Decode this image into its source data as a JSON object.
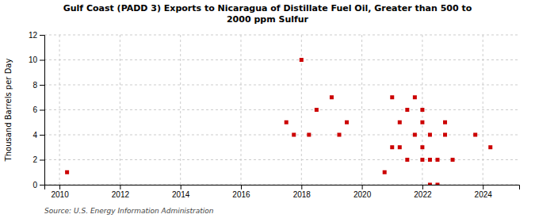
{
  "chart_data": {
    "type": "scatter",
    "title": "Gulf Coast (PADD 3) Exports to Nicaragua of Distillate Fuel Oil, Greater than 500 to\n2000 ppm Sulfur",
    "ylabel": "Thousand Barrels per Day",
    "annotations": [
      "Source: U.S. Energy Information Administration"
    ],
    "xlim": [
      2009.5,
      2025.2
    ],
    "ylim": [
      0,
      12
    ],
    "xticks": [
      2010,
      2012,
      2014,
      2016,
      2018,
      2020,
      2022,
      2024
    ],
    "yticks": [
      0,
      2,
      4,
      6,
      8,
      10,
      12
    ],
    "grid": true,
    "color": "#cc0000",
    "marker": "square",
    "x": [
      2010.25,
      2017.5,
      2017.75,
      2018.0,
      2018.25,
      2018.5,
      2019.0,
      2019.25,
      2019.5,
      2020.75,
      2021.0,
      2021.0,
      2021.25,
      2021.25,
      2021.5,
      2021.5,
      2021.75,
      2021.75,
      2022.0,
      2022.0,
      2022.0,
      2022.0,
      2022.25,
      2022.25,
      2022.25,
      2022.5,
      2022.5,
      2022.75,
      2022.75,
      2023.0,
      2023.75,
      2024.25
    ],
    "values": [
      1,
      5,
      4,
      10,
      4,
      6,
      7,
      4,
      5,
      1,
      3,
      7,
      3,
      5,
      2,
      6,
      4,
      7,
      3,
      5,
      6,
      2,
      4,
      2,
      0,
      0,
      2,
      5,
      4,
      2,
      4,
      3
    ]
  }
}
